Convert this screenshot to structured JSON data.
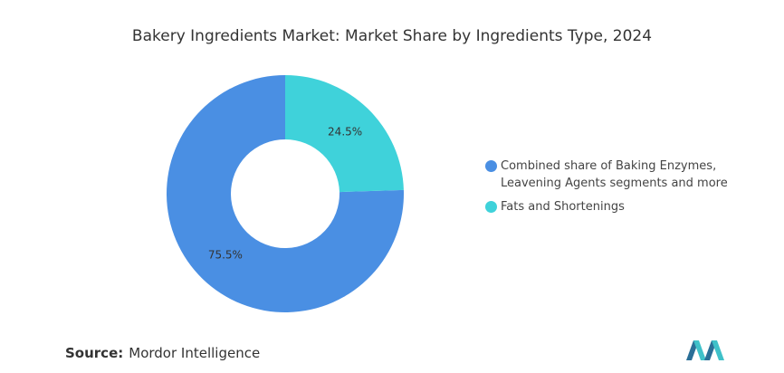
{
  "chart_data": {
    "type": "pie",
    "title": "Bakery Ingredients Market: Market Share by Ingredients Type, 2024",
    "categories": [
      "Combined share of Baking Enzymes, Leavening Agents segments and more",
      "Fats and Shortenings"
    ],
    "values": [
      75.5,
      24.5
    ],
    "value_labels": [
      "75.5%",
      "24.5%"
    ],
    "colors": [
      "#4a8fe3",
      "#3fd2da"
    ],
    "legend": "right"
  },
  "footer": {
    "source_label": "Source:",
    "source": "Mordor Intelligence"
  }
}
